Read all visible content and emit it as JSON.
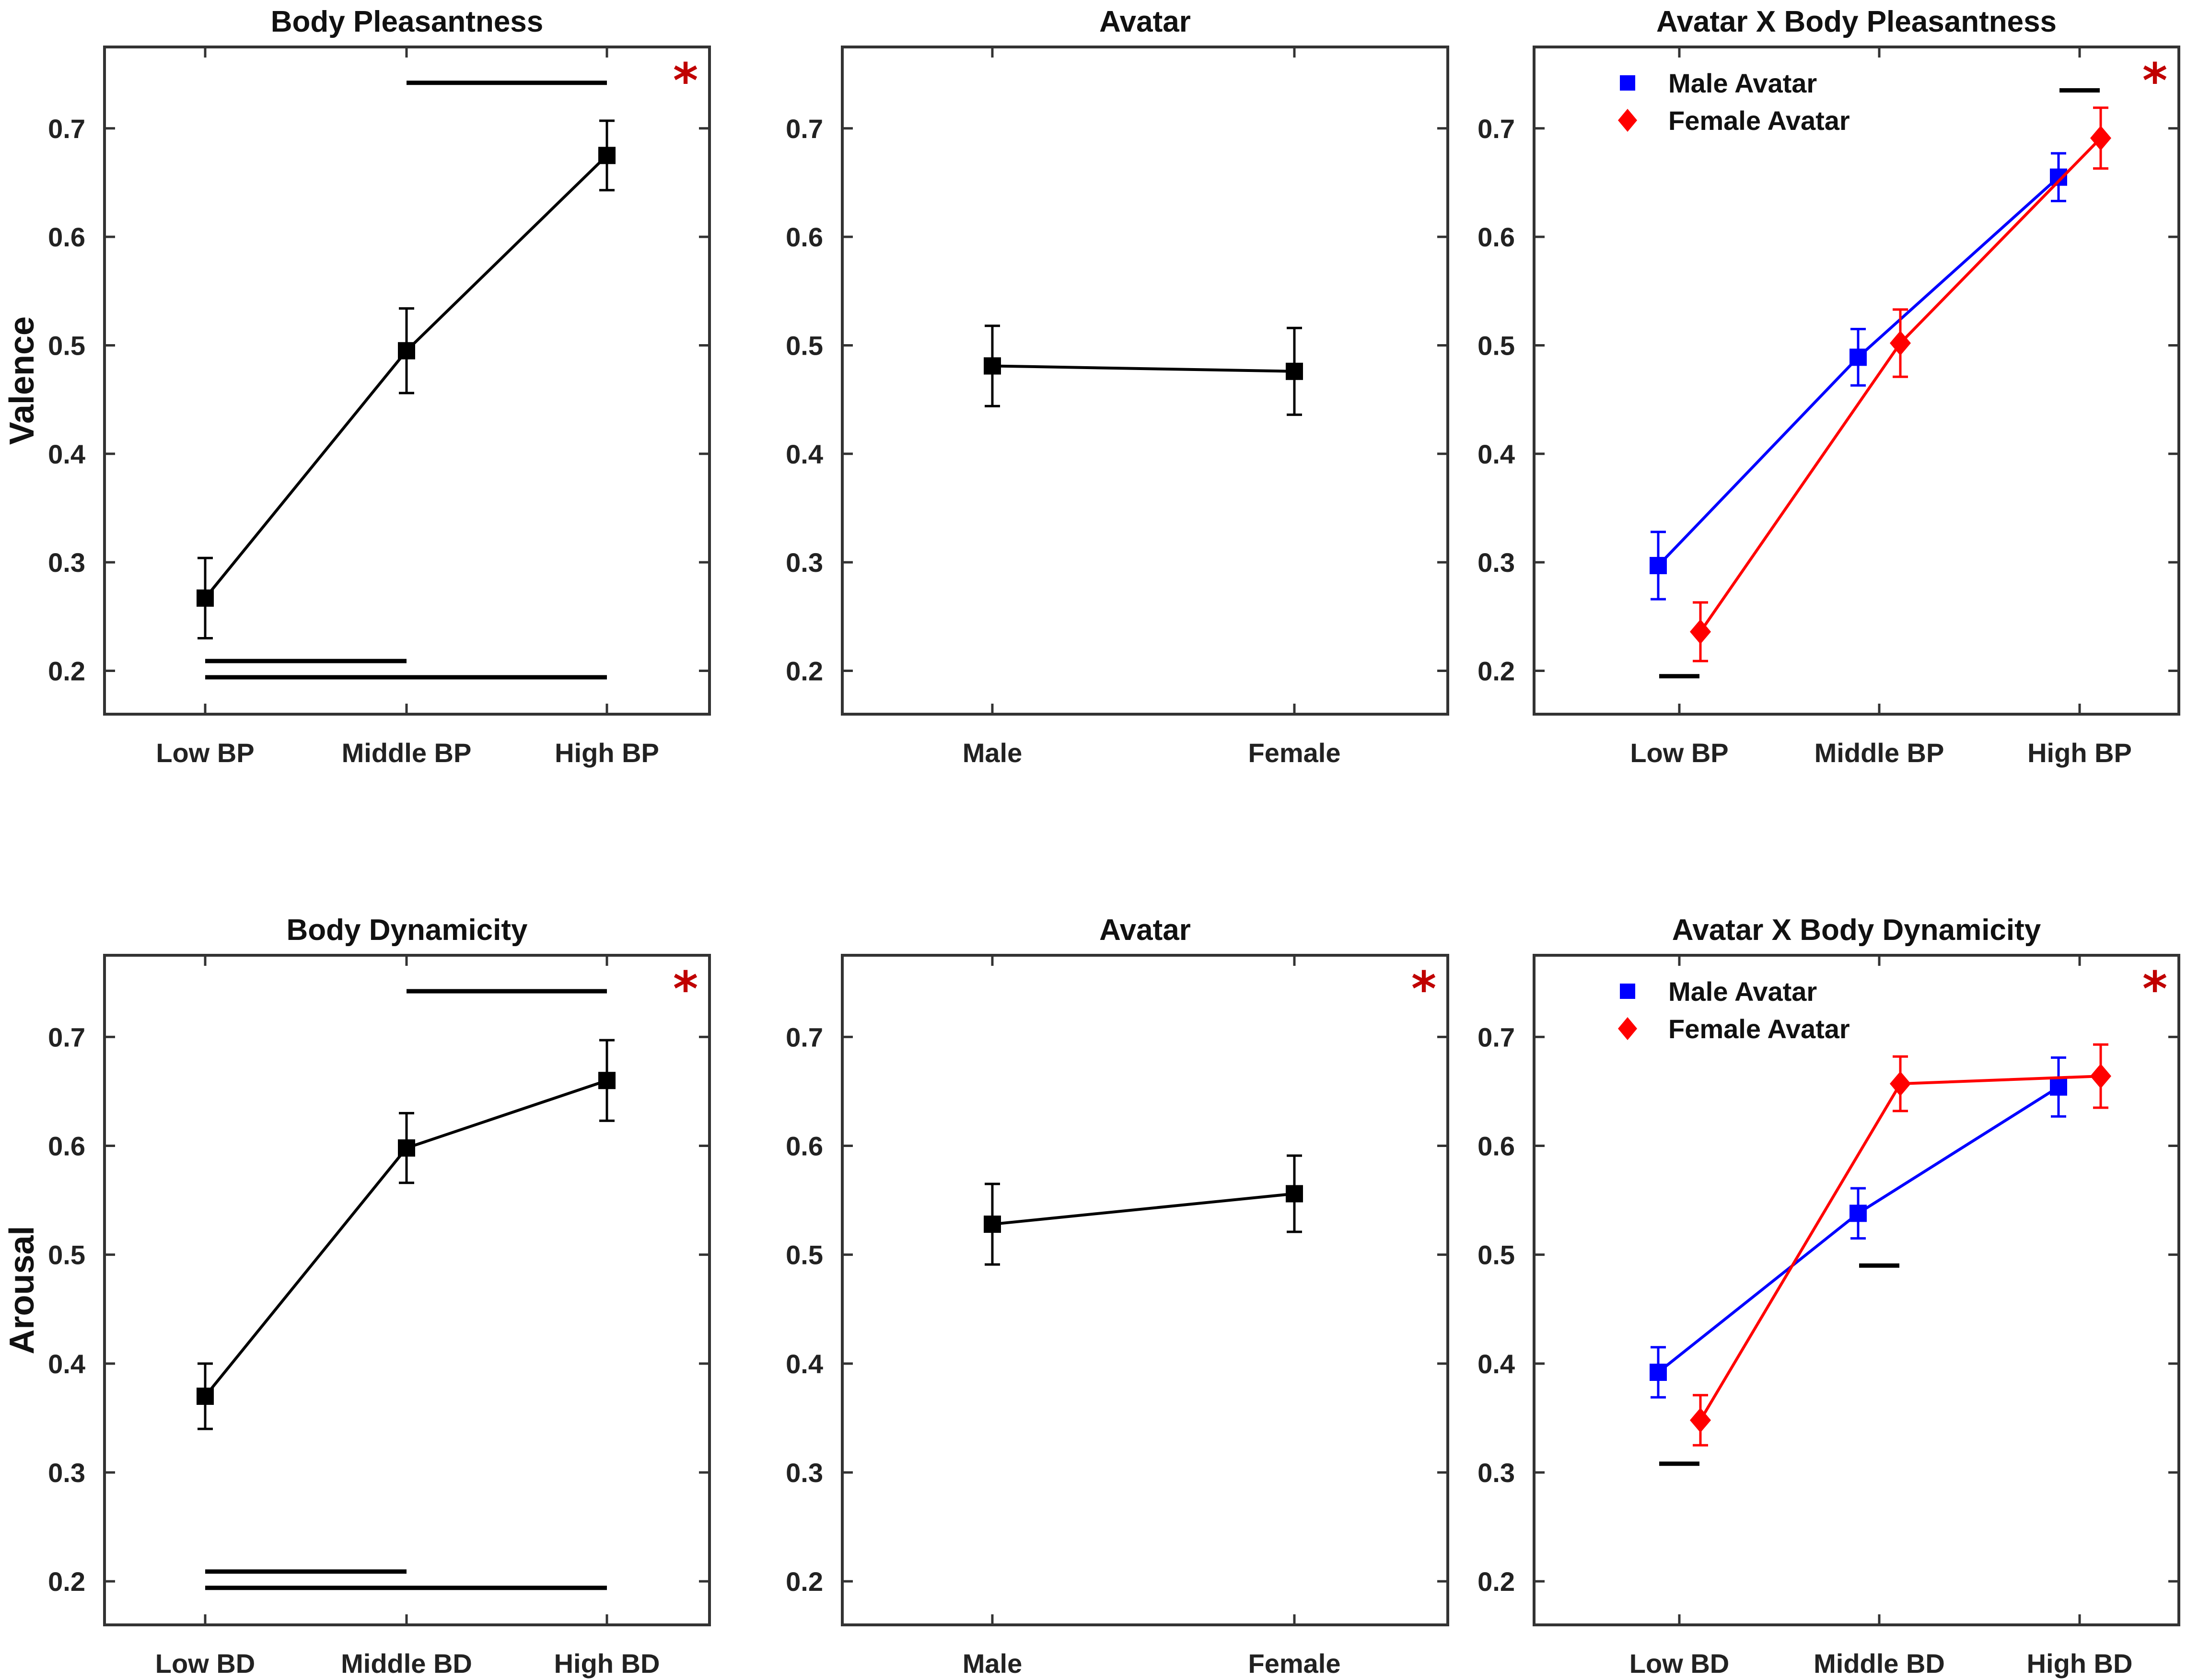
{
  "chart_data": [
    {
      "type": "line",
      "title": "Body Pleasantness",
      "ylabel": "Valence",
      "categories": [
        "Low BP",
        "Middle BP",
        "High BP"
      ],
      "ylim": [
        0.16,
        0.775
      ],
      "yticks": [
        0.2,
        0.3,
        0.4,
        0.5,
        0.6,
        0.7
      ],
      "series": [
        {
          "name": "",
          "color": "#000000",
          "marker": "square",
          "values": [
            0.267,
            0.495,
            0.675
          ],
          "errors": [
            0.037,
            0.039,
            0.032
          ]
        }
      ],
      "significance_bars": [
        {
          "from": 1,
          "to": 2,
          "y": 0.742
        },
        {
          "from": 0,
          "to": 1,
          "y": 0.209
        },
        {
          "from": 0,
          "to": 2,
          "y": 0.194
        }
      ],
      "significant": true,
      "significance_mark": "*"
    },
    {
      "type": "line",
      "title": "Avatar",
      "ylabel": "",
      "categories": [
        "Male",
        "Female"
      ],
      "ylim": [
        0.16,
        0.775
      ],
      "yticks": [
        0.2,
        0.3,
        0.4,
        0.5,
        0.6,
        0.7
      ],
      "series": [
        {
          "name": "",
          "color": "#000000",
          "marker": "square",
          "values": [
            0.481,
            0.476
          ],
          "errors": [
            0.037,
            0.04
          ]
        }
      ],
      "significance_bars": [],
      "significant": false,
      "significance_mark": ""
    },
    {
      "type": "line",
      "title": "Avatar X Body Pleasantness",
      "ylabel": "",
      "categories": [
        "Low BP",
        "Middle BP",
        "High BP"
      ],
      "ylim": [
        0.16,
        0.775
      ],
      "yticks": [
        0.2,
        0.3,
        0.4,
        0.5,
        0.6,
        0.7
      ],
      "legend": [
        "Male Avatar",
        "Female Avatar"
      ],
      "legend_position": "top-left",
      "series": [
        {
          "name": "Male Avatar",
          "color": "#0000ff",
          "marker": "square",
          "values": [
            0.297,
            0.489,
            0.655
          ],
          "errors": [
            0.031,
            0.026,
            0.022
          ]
        },
        {
          "name": "Female Avatar",
          "color": "#ff0000",
          "marker": "diamond",
          "values": [
            0.236,
            0.502,
            0.691
          ],
          "errors": [
            0.027,
            0.031,
            0.028
          ]
        }
      ],
      "significance_bars": [
        {
          "at": 0,
          "y": 0.195
        },
        {
          "at": 2,
          "y": 0.735
        }
      ],
      "significant": true,
      "significance_mark": "*"
    },
    {
      "type": "line",
      "title": "Body Dynamicity",
      "ylabel": "Arousal",
      "categories": [
        "Low BD",
        "Middle BD",
        "High BD"
      ],
      "ylim": [
        0.16,
        0.775
      ],
      "yticks": [
        0.2,
        0.3,
        0.4,
        0.5,
        0.6,
        0.7
      ],
      "series": [
        {
          "name": "",
          "color": "#000000",
          "marker": "square",
          "values": [
            0.37,
            0.598,
            0.66
          ],
          "errors": [
            0.03,
            0.032,
            0.037
          ]
        }
      ],
      "significance_bars": [
        {
          "from": 1,
          "to": 2,
          "y": 0.742
        },
        {
          "from": 0,
          "to": 1,
          "y": 0.209
        },
        {
          "from": 0,
          "to": 2,
          "y": 0.194
        }
      ],
      "significant": true,
      "significance_mark": "*"
    },
    {
      "type": "line",
      "title": "Avatar",
      "ylabel": "",
      "categories": [
        "Male",
        "Female"
      ],
      "ylim": [
        0.16,
        0.775
      ],
      "yticks": [
        0.2,
        0.3,
        0.4,
        0.5,
        0.6,
        0.7
      ],
      "series": [
        {
          "name": "",
          "color": "#000000",
          "marker": "square",
          "values": [
            0.528,
            0.556
          ],
          "errors": [
            0.037,
            0.035
          ]
        }
      ],
      "significance_bars": [],
      "significant": true,
      "significance_mark": "*"
    },
    {
      "type": "line",
      "title": "Avatar X Body Dynamicity",
      "ylabel": "",
      "categories": [
        "Low BD",
        "Middle BD",
        "High BD"
      ],
      "ylim": [
        0.16,
        0.775
      ],
      "yticks": [
        0.2,
        0.3,
        0.4,
        0.5,
        0.6,
        0.7
      ],
      "legend": [
        "Male Avatar",
        "Female Avatar"
      ],
      "legend_position": "top-left",
      "series": [
        {
          "name": "Male Avatar",
          "color": "#0000ff",
          "marker": "square",
          "values": [
            0.392,
            0.538,
            0.654
          ],
          "errors": [
            0.023,
            0.023,
            0.027
          ]
        },
        {
          "name": "Female Avatar",
          "color": "#ff0000",
          "marker": "diamond",
          "values": [
            0.348,
            0.657,
            0.664
          ],
          "errors": [
            0.023,
            0.025,
            0.029
          ]
        }
      ],
      "significance_bars": [
        {
          "at": 0,
          "y": 0.308
        },
        {
          "at": 1,
          "y": 0.49
        }
      ],
      "significant": true,
      "significance_mark": "*"
    }
  ]
}
